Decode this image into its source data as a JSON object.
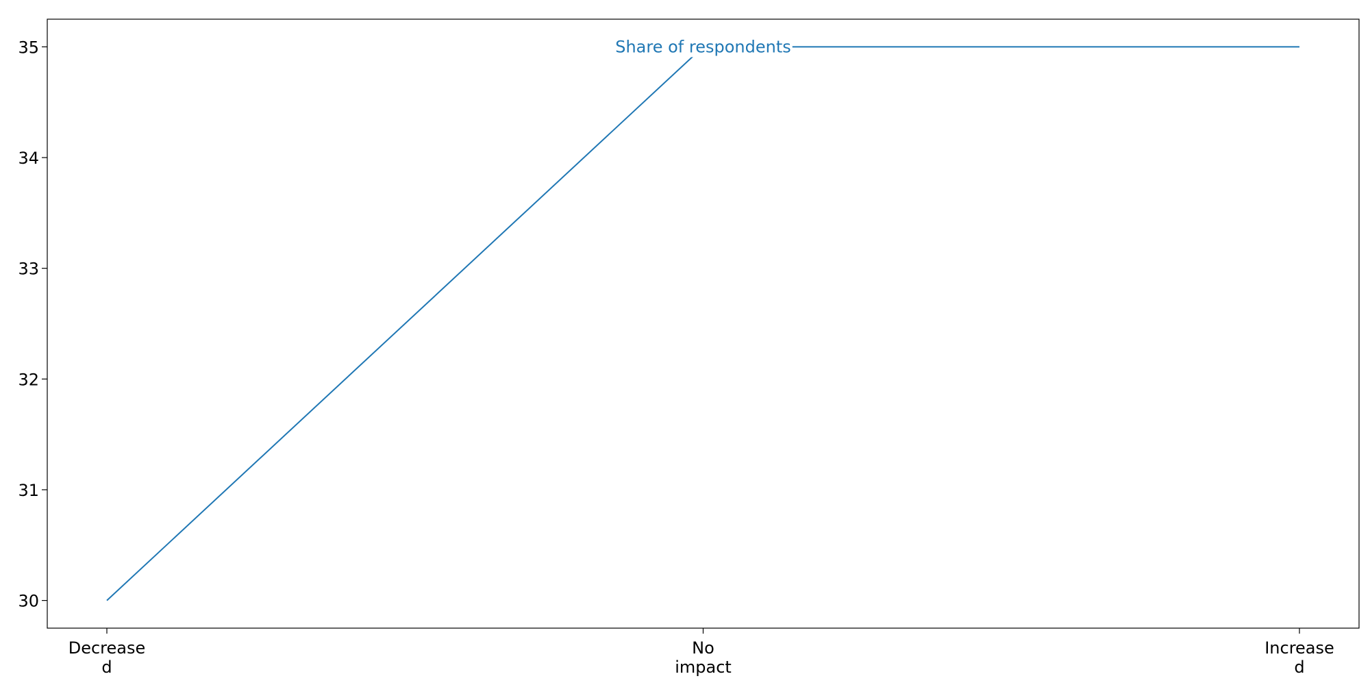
{
  "chart_data": {
    "type": "line",
    "categories": [
      "Decreased",
      "No impact",
      "Increased"
    ],
    "category_tick_labels": [
      [
        "Decrease",
        "d"
      ],
      [
        "No",
        "impact"
      ],
      [
        "Increase",
        "d"
      ]
    ],
    "series": [
      {
        "name": "Share of respondents",
        "values": [
          30,
          35,
          35
        ],
        "color": "#1f77b4"
      }
    ],
    "ylim": [
      29.75,
      35.25
    ],
    "yticks": [
      30,
      31,
      32,
      33,
      34,
      35
    ],
    "title": "",
    "xlabel": "",
    "ylabel": "",
    "grid": false,
    "legend": "none"
  }
}
